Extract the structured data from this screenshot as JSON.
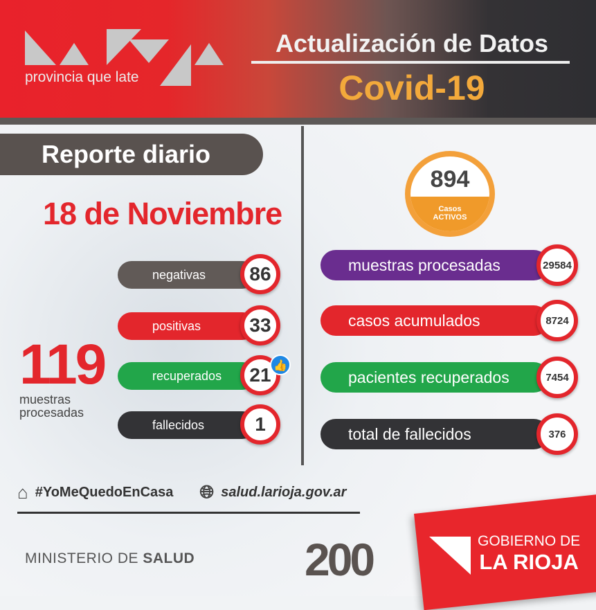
{
  "header": {
    "logo_text": "La Rioja",
    "tagline": "provincia que late",
    "title": "Actualización de Datos",
    "subtitle": "Covid-19"
  },
  "report": {
    "label": "Reporte diario",
    "date": "18 de Noviembre"
  },
  "daily": [
    {
      "label": "negativas",
      "value": "86",
      "color": "#615a57"
    },
    {
      "label": "positivas",
      "value": "33",
      "color": "#e3262c"
    },
    {
      "label": "recuperados",
      "value": "21",
      "color": "#22a64a"
    },
    {
      "label": "fallecidos",
      "value": "1",
      "color": "#333336"
    }
  ],
  "daily_total": {
    "value": "119",
    "label_1": "muestras",
    "label_2": "procesadas"
  },
  "active": {
    "value": "894",
    "label_1": "Casos",
    "label_2": "ACTIVOS"
  },
  "totals": [
    {
      "label": "muestras procesadas",
      "value": "29584",
      "color": "#6a2d8f"
    },
    {
      "label": "casos acumulados",
      "value": "8724",
      "color": "#e3262c"
    },
    {
      "label": "pacientes recuperados",
      "value": "7454",
      "color": "#22a64a"
    },
    {
      "label": "total de fallecidos",
      "value": "376",
      "color": "#333336"
    }
  ],
  "footer": {
    "hashtag": "#YoMeQuedoEnCasa",
    "website": "salud.larioja.gov.ar",
    "ministry_prefix": "MINISTERIO DE ",
    "ministry_bold": "SALUD",
    "bicentennial": "200",
    "gov_line1": "GOBIERNO DE",
    "gov_line2": "LA RIOJA"
  }
}
